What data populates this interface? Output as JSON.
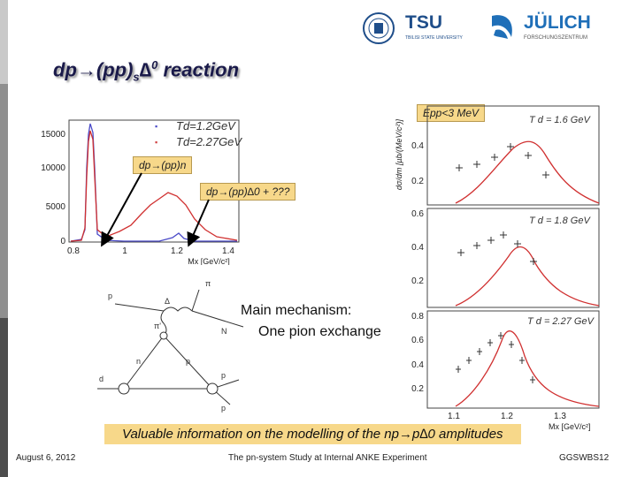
{
  "logos": {
    "tsu": {
      "name": "TSU",
      "subtitle": "TBILISI STATE UNIVERSITY"
    },
    "julich": {
      "name": "JÜLICH",
      "subtitle": "FORSCHUNGSZENTRUM"
    }
  },
  "slide": {
    "title_main": "dp→(pp)",
    "title_sub": "s",
    "title_delta": "∆",
    "title_sup": "0",
    "title_rest": " reaction"
  },
  "spectrum": {
    "legend": [
      {
        "bullet": "▪",
        "text": "Td=1.2GeV",
        "color": "#4a4ac8"
      },
      {
        "bullet": "▪",
        "text": "Td=2.27GeV",
        "color": "#d04040"
      }
    ],
    "y_ticks": [
      "15000",
      "10000",
      "5000",
      "0"
    ],
    "x_ticks": [
      "0.8",
      "1",
      "1.2",
      "1.4"
    ],
    "x_label": "Mx [GeV/c²]",
    "label_ppn": "dp→(pp)n",
    "label_delta": "dp→(pp)∆0 + ???"
  },
  "cross_section": {
    "epp_label": "Epp<3 MeV",
    "y_axis_label": "dσ/dm [µb/(MeV/c²)]",
    "panels": [
      {
        "td": "T d = 1.6 GeV",
        "y_ticks": [
          "0.4",
          "0.2"
        ]
      },
      {
        "td": "T d = 1.8 GeV",
        "y_ticks": [
          "0.6",
          "0.4",
          "0.2"
        ]
      },
      {
        "td": "T d = 2.27 GeV",
        "y_ticks": [
          "0.8",
          "0.6",
          "0.4",
          "0.2"
        ]
      }
    ],
    "x_ticks": [
      "1.1",
      "1.2",
      "1.3"
    ],
    "x_label": "Mx [GeV/c²]"
  },
  "diagram": {
    "labels": {
      "p_top": "p",
      "pi_top": "π",
      "delta": "Δ",
      "pi_prime": "π'",
      "N": "N",
      "n": "n",
      "p_mid": "p",
      "d": "d",
      "p_right": "p",
      "p_bottom": "p"
    }
  },
  "mechanism": {
    "line1": "Main mechanism:",
    "line2": "One pion exchange"
  },
  "banner": {
    "text": "Valuable information on the modelling of the np→p∆0 amplitudes"
  },
  "footer": {
    "date": "August 6, 2012",
    "center": "The pn-system Study at Internal ANKE Experiment",
    "right": "GGSWBS12"
  },
  "colors": {
    "accent_dark": "#444444",
    "accent_mid": "#9a9a9a",
    "highlight": "#f7d88a",
    "curve_red": "#d03030",
    "curve_blue": "#4a4ac8"
  }
}
